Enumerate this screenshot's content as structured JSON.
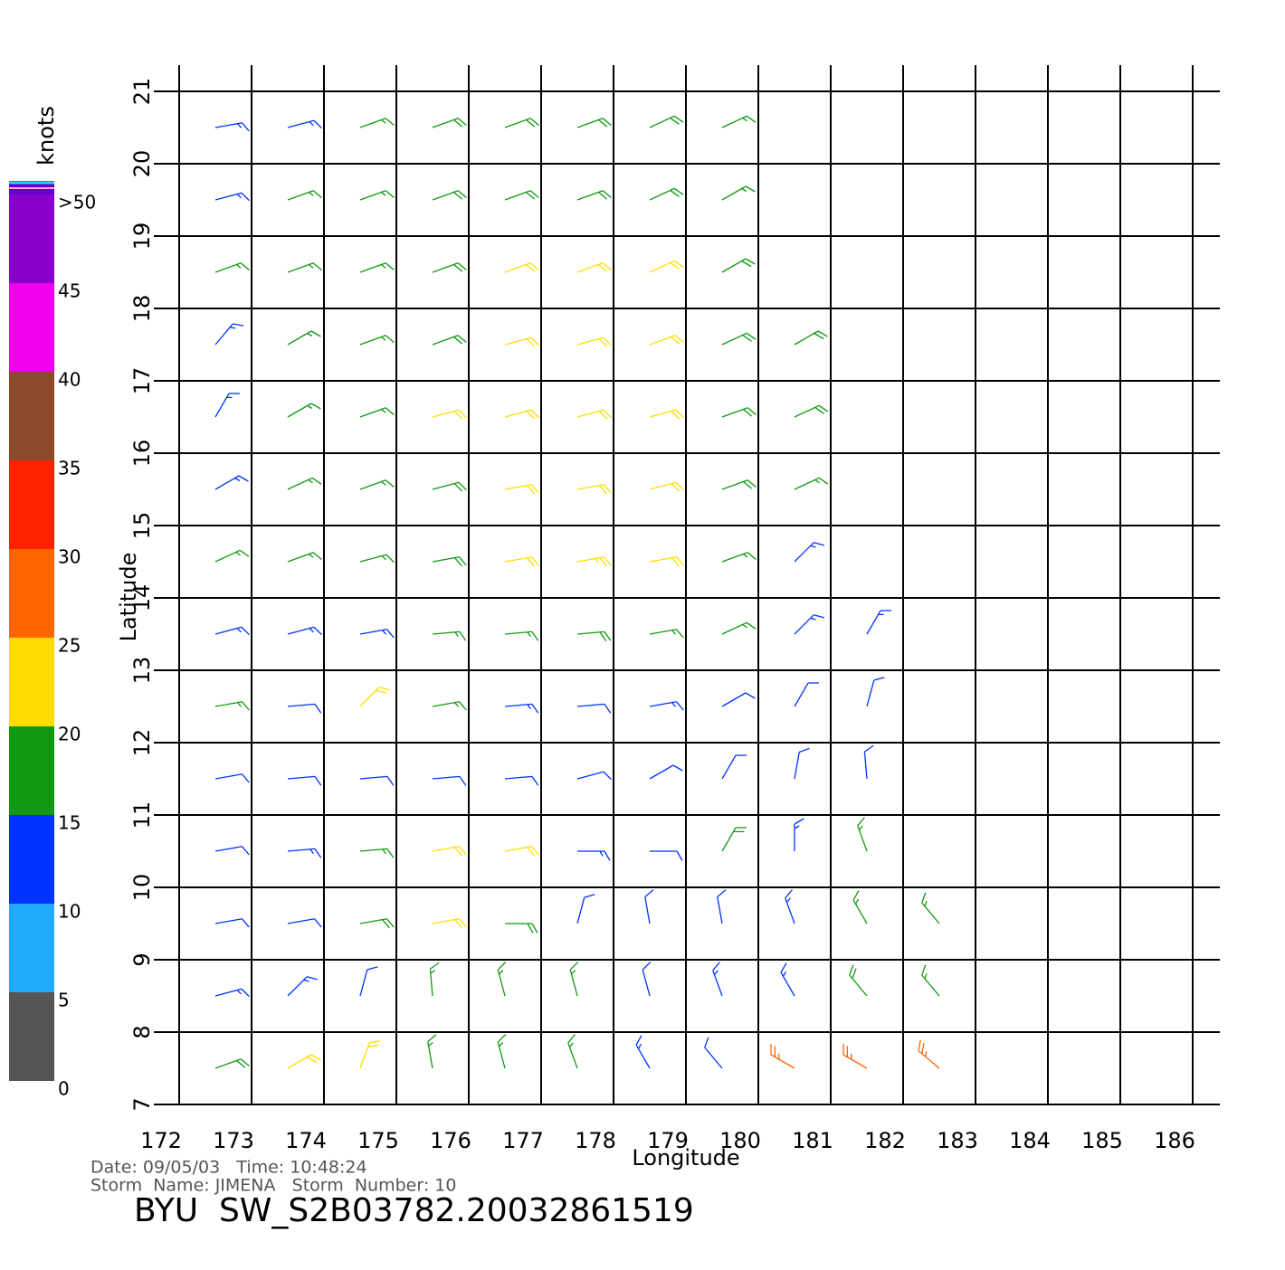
{
  "chart_data": {
    "type": "barbs",
    "title": "BYU  SW_S2B03782.20032861519",
    "annotations": [
      "Date: 09/05/03   Time: 10:48:24",
      "Storm  Name: JIMENA   Storm  Number: 10"
    ],
    "xlabel": "Longitude",
    "ylabel": "Latitude",
    "xlim": [
      172,
      186
    ],
    "ylim": [
      7,
      21
    ],
    "xticks": [
      172,
      173,
      174,
      175,
      176,
      177,
      178,
      179,
      180,
      181,
      182,
      183,
      184,
      185,
      186
    ],
    "yticks": [
      7,
      8,
      9,
      10,
      11,
      12,
      13,
      14,
      15,
      16,
      17,
      18,
      19,
      20,
      21
    ],
    "grid": true,
    "colorbar": {
      "label": "knots",
      "ticks": [
        0,
        5,
        10,
        15,
        20,
        25,
        30,
        35,
        40,
        45,
        {
          "value": 50,
          "label": ">50"
        }
      ],
      "colors": [
        "#555555",
        "#22aaff",
        "#0033ff",
        "#119911",
        "#ffdd00",
        "#ff6600",
        "#ff2200",
        "#8b4a2a",
        "#ee00ee",
        "#8800cc",
        "#6600cc"
      ]
    },
    "barbs": [
      {
        "lat": 20.5,
        "lon": [
          172.5,
          173.5,
          174.5,
          175.5,
          176.5,
          177.5,
          178.5,
          179.5
        ],
        "speed": [
          13,
          14,
          17,
          18,
          18,
          18,
          18,
          17
        ],
        "direction": [
          80,
          75,
          70,
          70,
          70,
          70,
          65,
          65
        ]
      },
      {
        "lat": 19.5,
        "lon": [
          172.5,
          173.5,
          174.5,
          175.5,
          176.5,
          177.5,
          178.5,
          179.5
        ],
        "speed": [
          14,
          16,
          17,
          18,
          19,
          19,
          18,
          17
        ],
        "direction": [
          75,
          70,
          70,
          70,
          70,
          70,
          65,
          60
        ]
      },
      {
        "lat": 18.5,
        "lon": [
          172.5,
          173.5,
          174.5,
          175.5,
          176.5,
          177.5,
          178.5,
          179.5
        ],
        "speed": [
          15,
          16,
          17,
          18,
          21,
          21,
          20,
          18
        ],
        "direction": [
          70,
          70,
          70,
          70,
          70,
          70,
          65,
          60
        ]
      },
      {
        "lat": 17.5,
        "lon": [
          172.5,
          173.5,
          174.5,
          175.5,
          176.5,
          177.5,
          178.5,
          179.5,
          180.5
        ],
        "speed": [
          14,
          16,
          17,
          19,
          21,
          21,
          21,
          18,
          18
        ],
        "direction": [
          40,
          60,
          70,
          70,
          75,
          75,
          70,
          65,
          60
        ]
      },
      {
        "lat": 16.5,
        "lon": [
          172.5,
          173.5,
          174.5,
          175.5,
          176.5,
          177.5,
          178.5,
          179.5,
          180.5
        ],
        "speed": [
          14,
          16,
          17,
          21,
          21,
          21,
          21,
          19,
          19
        ],
        "direction": [
          30,
          60,
          70,
          75,
          75,
          75,
          75,
          70,
          65
        ]
      },
      {
        "lat": 15.5,
        "lon": [
          172.5,
          173.5,
          174.5,
          175.5,
          176.5,
          177.5,
          178.5,
          179.5,
          180.5
        ],
        "speed": [
          14,
          16,
          17,
          19,
          21,
          21,
          20,
          18,
          17
        ],
        "direction": [
          60,
          65,
          70,
          75,
          80,
          80,
          75,
          70,
          65
        ]
      },
      {
        "lat": 14.5,
        "lon": [
          172.5,
          173.5,
          174.5,
          175.5,
          176.5,
          177.5,
          178.5,
          179.5,
          180.5
        ],
        "speed": [
          15,
          16,
          17,
          18,
          20,
          23,
          20,
          17,
          14
        ],
        "direction": [
          65,
          70,
          75,
          80,
          80,
          80,
          80,
          70,
          45
        ]
      },
      {
        "lat": 13.5,
        "lon": [
          172.5,
          173.5,
          174.5,
          175.5,
          176.5,
          177.5,
          178.5,
          179.5,
          180.5,
          181.5
        ],
        "speed": [
          13,
          14,
          13,
          15,
          17,
          18,
          17,
          15,
          13,
          13
        ],
        "direction": [
          75,
          75,
          80,
          85,
          85,
          85,
          80,
          65,
          45,
          30
        ]
      },
      {
        "lat": 12.5,
        "lon": [
          172.5,
          173.5,
          174.5,
          175.5,
          176.5,
          177.5,
          178.5,
          179.5,
          180.5,
          181.5
        ],
        "speed": [
          16,
          12,
          21,
          16,
          13,
          12,
          13,
          12,
          11,
          12
        ],
        "direction": [
          80,
          85,
          45,
          80,
          85,
          85,
          80,
          60,
          30,
          15
        ]
      },
      {
        "lat": 11.5,
        "lon": [
          172.5,
          173.5,
          174.5,
          175.5,
          176.5,
          177.5,
          178.5,
          179.5,
          180.5,
          181.5
        ],
        "speed": [
          12,
          11,
          12,
          11,
          11,
          11,
          12,
          12,
          12,
          12
        ],
        "direction": [
          80,
          85,
          85,
          85,
          85,
          75,
          60,
          30,
          10,
          355
        ]
      },
      {
        "lat": 10.5,
        "lon": [
          172.5,
          173.5,
          174.5,
          175.5,
          176.5,
          177.5,
          178.5,
          179.5,
          180.5,
          181.5
        ],
        "speed": [
          11,
          13,
          16,
          20,
          20,
          13,
          12,
          18,
          14,
          16
        ],
        "direction": [
          80,
          85,
          85,
          80,
          80,
          90,
          90,
          30,
          0,
          340
        ]
      },
      {
        "lat": 9.5,
        "lon": [
          172.5,
          173.5,
          174.5,
          175.5,
          176.5,
          177.5,
          178.5,
          179.5,
          180.5,
          181.5,
          182.5
        ],
        "speed": [
          12,
          12,
          19,
          22,
          18,
          12,
          11,
          12,
          14,
          15,
          16
        ],
        "direction": [
          80,
          80,
          80,
          80,
          90,
          15,
          350,
          350,
          340,
          330,
          320
        ]
      },
      {
        "lat": 8.5,
        "lon": [
          172.5,
          173.5,
          174.5,
          175.5,
          176.5,
          177.5,
          178.5,
          179.5,
          180.5,
          181.5,
          182.5
        ],
        "speed": [
          13,
          13,
          12,
          16,
          17,
          16,
          12,
          13,
          13,
          18,
          17
        ],
        "direction": [
          75,
          45,
          15,
          355,
          345,
          345,
          345,
          340,
          330,
          320,
          320
        ]
      },
      {
        "lat": 7.5,
        "lon": [
          172.5,
          173.5,
          174.5,
          175.5,
          176.5,
          177.5,
          178.5,
          179.5,
          180.5,
          181.5,
          182.5
        ],
        "speed": [
          18,
          22,
          20,
          16,
          17,
          15,
          13,
          12,
          26,
          25,
          27
        ],
        "direction": [
          70,
          60,
          20,
          350,
          345,
          340,
          330,
          320,
          300,
          300,
          310
        ]
      }
    ]
  }
}
